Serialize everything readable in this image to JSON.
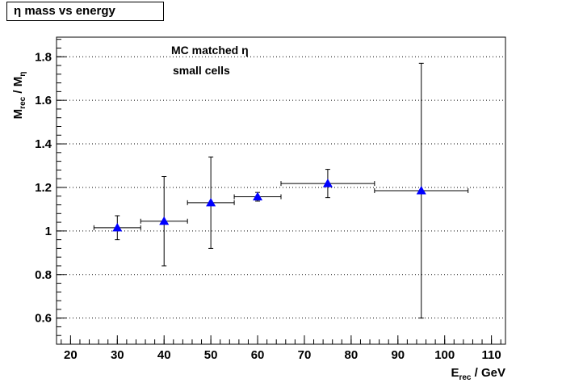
{
  "chart_data": {
    "type": "scatter",
    "title": "η mass vs energy",
    "xlabel": {
      "main": "E",
      "sub": "rec",
      "rest": " / GeV"
    },
    "ylabel": {
      "main": "M",
      "sub": "rec",
      "mid": " / M",
      "sub2": "η"
    },
    "xlim": [
      17,
      113
    ],
    "ylim": [
      0.48,
      1.89
    ],
    "xticks": [
      20,
      30,
      40,
      50,
      60,
      70,
      80,
      90,
      100,
      110
    ],
    "yticks": [
      0.6,
      0.8,
      1,
      1.2,
      1.4,
      1.6,
      1.8
    ],
    "grid": "horizontal dotted",
    "annotations": [
      "MC matched η",
      "small cells"
    ],
    "marker_color": "#0000ff",
    "points": [
      {
        "x": 30,
        "y": 1.015,
        "xerr": 5,
        "yerr_low": 0.055,
        "yerr_high": 0.055
      },
      {
        "x": 40,
        "y": 1.045,
        "xerr": 5,
        "yerr_low": 0.205,
        "yerr_high": 0.205
      },
      {
        "x": 50,
        "y": 1.13,
        "xerr": 5,
        "yerr_low": 0.21,
        "yerr_high": 0.21
      },
      {
        "x": 60,
        "y": 1.157,
        "xerr": 5,
        "yerr_low": 0.02,
        "yerr_high": 0.02
      },
      {
        "x": 75,
        "y": 1.218,
        "xerr": 10,
        "yerr_low": 0.065,
        "yerr_high": 0.065
      },
      {
        "x": 95,
        "y": 1.185,
        "xerr": 10,
        "yerr_low": 0.585,
        "yerr_high": 0.585
      }
    ]
  }
}
